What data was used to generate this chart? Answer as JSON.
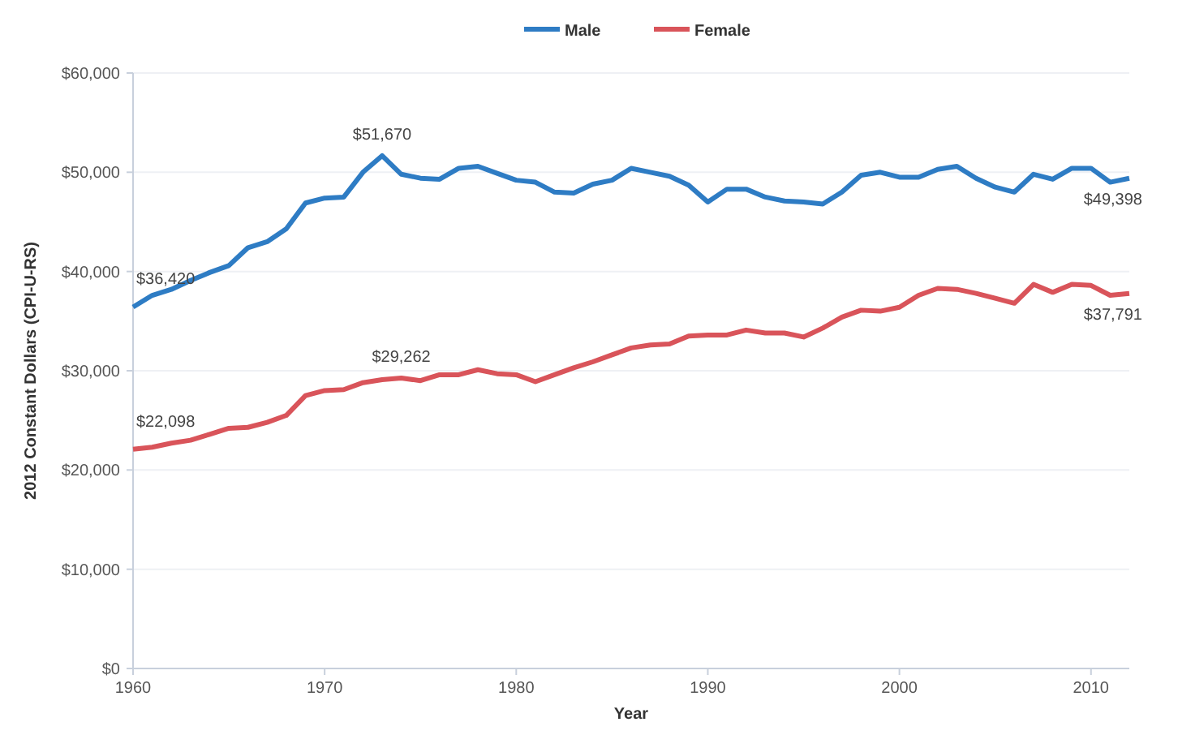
{
  "chart_data": {
    "type": "line",
    "xlabel": "Year",
    "ylabel": "2012 Constant Dollars  (CPI-U-RS)",
    "x": [
      1960,
      1961,
      1962,
      1963,
      1964,
      1965,
      1966,
      1967,
      1968,
      1969,
      1970,
      1971,
      1972,
      1973,
      1974,
      1975,
      1976,
      1977,
      1978,
      1979,
      1980,
      1981,
      1982,
      1983,
      1984,
      1985,
      1986,
      1987,
      1988,
      1989,
      1990,
      1991,
      1992,
      1993,
      1994,
      1995,
      1996,
      1997,
      1998,
      1999,
      2000,
      2001,
      2002,
      2003,
      2004,
      2005,
      2006,
      2007,
      2008,
      2009,
      2010,
      2011,
      2012
    ],
    "series": [
      {
        "name": "Male",
        "color": "#2e7cc4",
        "values": [
          36420,
          37600,
          38200,
          39100,
          39900,
          40600,
          42400,
          43000,
          44300,
          46900,
          47400,
          47500,
          50000,
          51670,
          49800,
          49400,
          49300,
          50400,
          50600,
          49900,
          49200,
          49000,
          48000,
          47900,
          48800,
          49200,
          50400,
          50000,
          49600,
          48700,
          47000,
          48300,
          48300,
          47500,
          47100,
          47000,
          46800,
          48000,
          49700,
          50000,
          49500,
          49500,
          50300,
          50600,
          49400,
          48500,
          48000,
          49800,
          49300,
          50400,
          50400,
          49000,
          49398
        ]
      },
      {
        "name": "Female",
        "color": "#d9545a",
        "values": [
          22098,
          22300,
          22700,
          23000,
          23600,
          24200,
          24300,
          24800,
          25500,
          27500,
          28000,
          28100,
          28800,
          29100,
          29262,
          29000,
          29600,
          29600,
          30100,
          29700,
          29600,
          28900,
          29600,
          30300,
          30900,
          31600,
          32300,
          32600,
          32700,
          33500,
          33600,
          33600,
          34100,
          33800,
          33800,
          33400,
          34300,
          35400,
          36100,
          36000,
          36400,
          37600,
          38300,
          38200,
          37800,
          37300,
          36800,
          38700,
          37900,
          38700,
          38600,
          37600,
          37791
        ]
      }
    ],
    "xlim": [
      1960,
      2012
    ],
    "xticks": [
      1960,
      1970,
      1980,
      1990,
      2000,
      2010
    ],
    "ylim": [
      0,
      60000
    ],
    "yticks": [
      {
        "value": 0,
        "label": "$0"
      },
      {
        "value": 10000,
        "label": "$10,000"
      },
      {
        "value": 20000,
        "label": "$20,000"
      },
      {
        "value": 30000,
        "label": "$30,000"
      },
      {
        "value": 40000,
        "label": "$40,000"
      },
      {
        "value": 50000,
        "label": "$50,000"
      },
      {
        "value": 60000,
        "label": "$60,000"
      }
    ],
    "grid": "y",
    "legend": "top",
    "marker": "none",
    "line_style": "solid",
    "annotations": [
      {
        "text": "$36,420",
        "x": 1960,
        "y": 36420
      },
      {
        "text": "$51,670",
        "x": 1973,
        "y": 51670
      },
      {
        "text": "$49,398",
        "x": 2012,
        "y": 49398
      },
      {
        "text": "$22,098",
        "x": 1960,
        "y": 22098
      },
      {
        "text": "$29,262",
        "x": 1974,
        "y": 29262
      },
      {
        "text": "$37,791",
        "x": 2012,
        "y": 37791
      }
    ]
  }
}
